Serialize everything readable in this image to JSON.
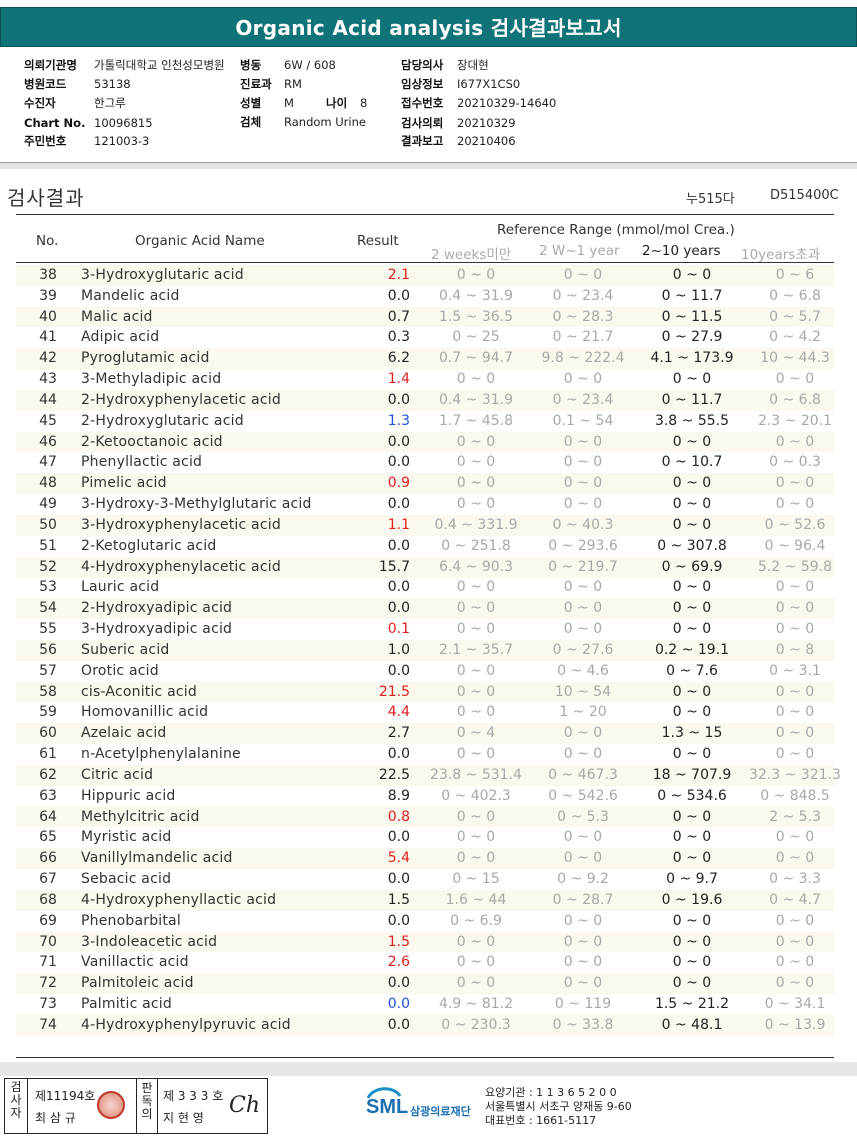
{
  "header": {
    "title": "Organic Acid analysis 검사결과보고서"
  },
  "info": {
    "institution_label": "의뢰기관명",
    "institution": "가톨릭대학교 인천성모병원",
    "hospital_code_label": "병원코드",
    "hospital_code": "53138",
    "patient_label": "수진자",
    "patient": "한그루",
    "chart_label": "Chart No.",
    "chart": "10096815",
    "id_label": "주민번호",
    "id": "121003-3",
    "ward_label": "병동",
    "ward": "6W / 608",
    "dept_label": "진료과",
    "dept": "RM",
    "sex_label": "성별",
    "sex": "M",
    "age_label": "나이",
    "age": "8",
    "specimen_label": "검체",
    "specimen": "Random Urine",
    "doctor_label": "담당의사",
    "doctor": "장대현",
    "clinical_label": "임상정보",
    "clinical": "I677X1CS0",
    "receipt_label": "접수번호",
    "receipt": "20210329-14640",
    "request_label": "검사의뢰",
    "request": "20210329",
    "report_label": "결과보고",
    "report": "20210406"
  },
  "section": {
    "title": "검사결과",
    "code1": "누515다",
    "code2": "D515400C"
  },
  "table": {
    "col_no": "No.",
    "col_name": "Organic Acid Name",
    "col_result": "Result",
    "ref_title": "Reference Range (mmol/mol Crea.)",
    "ref_cols": [
      "2 weeks미만",
      "2 W~1 year",
      "2~10 years",
      "10years초과"
    ]
  },
  "colors": {
    "header_bg": "#0f7377",
    "high": "#e02020",
    "low": "#2050d8",
    "stripe": "#fbf8ee"
  },
  "rows": [
    {
      "no": "38",
      "name": "3-Hydroxyglutaric acid",
      "result": "2.1",
      "flag": "high",
      "r1": "0 ~ 0",
      "r2": "0 ~ 0",
      "r3": "0 ~ 0",
      "r4": "0 ~ 6"
    },
    {
      "no": "39",
      "name": "Mandelic acid",
      "result": "0.0",
      "flag": "",
      "r1": "0.4 ~ 31.9",
      "r2": "0 ~ 23.4",
      "r3": "0 ~ 11.7",
      "r4": "0 ~ 6.8"
    },
    {
      "no": "40",
      "name": "Malic acid",
      "result": "0.7",
      "flag": "",
      "r1": "1.5 ~ 36.5",
      "r2": "0 ~ 28.3",
      "r3": "0 ~ 11.5",
      "r4": "0 ~ 5.7"
    },
    {
      "no": "41",
      "name": "Adipic acid",
      "result": "0.3",
      "flag": "",
      "r1": "0 ~ 25",
      "r2": "0 ~ 21.7",
      "r3": "0 ~ 27.9",
      "r4": "0 ~ 4.2"
    },
    {
      "no": "42",
      "name": "Pyroglutamic acid",
      "result": "6.2",
      "flag": "",
      "r1": "0.7 ~ 94.7",
      "r2": "9.8 ~ 222.4",
      "r3": "4.1 ~ 173.9",
      "r4": "10 ~ 44.3"
    },
    {
      "no": "43",
      "name": "3-Methyladipic acid",
      "result": "1.4",
      "flag": "high",
      "r1": "0 ~ 0",
      "r2": "0 ~ 0",
      "r3": "0 ~ 0",
      "r4": "0 ~ 0"
    },
    {
      "no": "44",
      "name": "2-Hydroxyphenylacetic acid",
      "result": "0.0",
      "flag": "",
      "r1": "0.4 ~ 31.9",
      "r2": "0 ~ 23.4",
      "r3": "0 ~ 11.7",
      "r4": "0 ~ 6.8"
    },
    {
      "no": "45",
      "name": "2-Hydroxyglutaric acid",
      "result": "1.3",
      "flag": "low",
      "r1": "1.7 ~ 45.8",
      "r2": "0.1 ~ 54",
      "r3": "3.8 ~ 55.5",
      "r4": "2.3 ~ 20.1"
    },
    {
      "no": "46",
      "name": "2-Ketooctanoic acid",
      "result": "0.0",
      "flag": "",
      "r1": "0 ~ 0",
      "r2": "0 ~ 0",
      "r3": "0 ~ 0",
      "r4": "0 ~ 0"
    },
    {
      "no": "47",
      "name": "Phenyllactic acid",
      "result": "0.0",
      "flag": "",
      "r1": "0 ~ 0",
      "r2": "0 ~ 0",
      "r3": "0 ~ 10.7",
      "r4": "0 ~ 0.3"
    },
    {
      "no": "48",
      "name": "Pimelic acid",
      "result": "0.9",
      "flag": "high",
      "r1": "0 ~ 0",
      "r2": "0 ~ 0",
      "r3": "0 ~ 0",
      "r4": "0 ~ 0"
    },
    {
      "no": "49",
      "name": "3-Hydroxy-3-Methylglutaric acid",
      "result": "0.0",
      "flag": "",
      "r1": "0 ~ 0",
      "r2": "0 ~ 0",
      "r3": "0 ~ 0",
      "r4": "0 ~ 0"
    },
    {
      "no": "50",
      "name": "3-Hydroxyphenylacetic acid",
      "result": "1.1",
      "flag": "high",
      "r1": "0.4 ~ 331.9",
      "r2": "0 ~ 40.3",
      "r3": "0 ~ 0",
      "r4": "0 ~ 52.6"
    },
    {
      "no": "51",
      "name": "2-Ketoglutaric acid",
      "result": "0.0",
      "flag": "",
      "r1": "0 ~ 251.8",
      "r2": "0 ~ 293.6",
      "r3": "0 ~ 307.8",
      "r4": "0 ~ 96.4"
    },
    {
      "no": "52",
      "name": "4-Hydroxyphenylacetic acid",
      "result": "15.7",
      "flag": "",
      "r1": "6.4 ~ 90.3",
      "r2": "0 ~ 219.7",
      "r3": "0 ~ 69.9",
      "r4": "5.2 ~ 59.8"
    },
    {
      "no": "53",
      "name": "Lauric acid",
      "result": "0.0",
      "flag": "",
      "r1": "0 ~ 0",
      "r2": "0 ~ 0",
      "r3": "0 ~ 0",
      "r4": "0 ~ 0"
    },
    {
      "no": "54",
      "name": "2-Hydroxyadipic acid",
      "result": "0.0",
      "flag": "",
      "r1": "0 ~ 0",
      "r2": "0 ~ 0",
      "r3": "0 ~ 0",
      "r4": "0 ~ 0"
    },
    {
      "no": "55",
      "name": "3-Hydroxyadipic acid",
      "result": "0.1",
      "flag": "high",
      "r1": "0 ~ 0",
      "r2": "0 ~ 0",
      "r3": "0 ~ 0",
      "r4": "0 ~ 0"
    },
    {
      "no": "56",
      "name": "Suberic acid",
      "result": "1.0",
      "flag": "",
      "r1": "2.1 ~ 35.7",
      "r2": "0 ~ 27.6",
      "r3": "0.2 ~ 19.1",
      "r4": "0 ~ 8"
    },
    {
      "no": "57",
      "name": "Orotic acid",
      "result": "0.0",
      "flag": "",
      "r1": "0 ~ 0",
      "r2": "0 ~ 4.6",
      "r3": "0 ~ 7.6",
      "r4": "0 ~ 3.1"
    },
    {
      "no": "58",
      "name": "cis-Aconitic acid",
      "result": "21.5",
      "flag": "high",
      "r1": "0 ~ 0",
      "r2": "10 ~ 54",
      "r3": "0 ~ 0",
      "r4": "0 ~ 0"
    },
    {
      "no": "59",
      "name": "Homovanillic acid",
      "result": "4.4",
      "flag": "high",
      "r1": "0 ~ 0",
      "r2": "1 ~ 20",
      "r3": "0 ~ 0",
      "r4": "0 ~ 0"
    },
    {
      "no": "60",
      "name": "Azelaic acid",
      "result": "2.7",
      "flag": "",
      "r1": "0 ~ 4",
      "r2": "0 ~ 0",
      "r3": "1.3 ~ 15",
      "r4": "0 ~ 0"
    },
    {
      "no": "61",
      "name": "n-Acetylphenylalanine",
      "result": "0.0",
      "flag": "",
      "r1": "0 ~ 0",
      "r2": "0 ~ 0",
      "r3": "0 ~ 0",
      "r4": "0 ~ 0"
    },
    {
      "no": "62",
      "name": "Citric acid",
      "result": "22.5",
      "flag": "",
      "r1": "23.8 ~ 531.4",
      "r2": "0 ~ 467.3",
      "r3": "18 ~ 707.9",
      "r4": "32.3 ~ 321.3"
    },
    {
      "no": "63",
      "name": "Hippuric acid",
      "result": "8.9",
      "flag": "",
      "r1": "0 ~ 402.3",
      "r2": "0 ~ 542.6",
      "r3": "0 ~ 534.6",
      "r4": "0 ~ 848.5"
    },
    {
      "no": "64",
      "name": "Methylcitric acid",
      "result": "0.8",
      "flag": "high",
      "r1": "0 ~ 0",
      "r2": "0 ~ 5.3",
      "r3": "0 ~ 0",
      "r4": "2 ~ 5.3"
    },
    {
      "no": "65",
      "name": "Myristic acid",
      "result": "0.0",
      "flag": "",
      "r1": "0 ~ 0",
      "r2": "0 ~ 0",
      "r3": "0 ~ 0",
      "r4": "0 ~ 0"
    },
    {
      "no": "66",
      "name": "Vanillylmandelic acid",
      "result": "5.4",
      "flag": "high",
      "r1": "0 ~ 0",
      "r2": "0 ~ 0",
      "r3": "0 ~ 0",
      "r4": "0 ~ 0"
    },
    {
      "no": "67",
      "name": "Sebacic acid",
      "result": "0.0",
      "flag": "",
      "r1": "0 ~ 15",
      "r2": "0 ~ 9.2",
      "r3": "0 ~ 9.7",
      "r4": "0 ~ 3.3"
    },
    {
      "no": "68",
      "name": "4-Hydroxyphenyllactic acid",
      "result": "1.5",
      "flag": "",
      "r1": "1.6 ~ 44",
      "r2": "0 ~ 28.7",
      "r3": "0 ~ 19.6",
      "r4": "0 ~ 4.7"
    },
    {
      "no": "69",
      "name": "Phenobarbital",
      "result": "0.0",
      "flag": "",
      "r1": "0 ~ 6.9",
      "r2": "0 ~ 0",
      "r3": "0 ~ 0",
      "r4": "0 ~ 0"
    },
    {
      "no": "70",
      "name": "3-Indoleacetic acid",
      "result": "1.5",
      "flag": "high",
      "r1": "0 ~ 0",
      "r2": "0 ~ 0",
      "r3": "0 ~ 0",
      "r4": "0 ~ 0"
    },
    {
      "no": "71",
      "name": "Vanillactic acid",
      "result": "2.6",
      "flag": "high",
      "r1": "0 ~ 0",
      "r2": "0 ~ 0",
      "r3": "0 ~ 0",
      "r4": "0 ~ 0"
    },
    {
      "no": "72",
      "name": "Palmitoleic acid",
      "result": "0.0",
      "flag": "",
      "r1": "0 ~ 0",
      "r2": "0 ~ 0",
      "r3": "0 ~ 0",
      "r4": "0 ~ 0"
    },
    {
      "no": "73",
      "name": "Palmitic acid",
      "result": "0.0",
      "flag": "low",
      "r1": "4.9 ~ 81.2",
      "r2": "0 ~ 119",
      "r3": "1.5 ~ 21.2",
      "r4": "0 ~ 34.1"
    },
    {
      "no": "74",
      "name": "4-Hydroxyphenylpyruvic acid",
      "result": "0.0",
      "flag": "",
      "r1": "0 ~ 230.3",
      "r2": "0 ~ 33.8",
      "r3": "0 ~ 48.1",
      "r4": "0 ~ 13.9"
    }
  ],
  "footer": {
    "inspector_label": "검사자",
    "inspector_no": "제11194호",
    "inspector_name": "최 삼 규",
    "reviewer_label": "판독의",
    "reviewer_no": "제 3 3 3 호",
    "reviewer_name": "지 현 영",
    "signature": "Ch",
    "logo_text": "SML",
    "logo_sub": "삼광의료재단",
    "care_no": "요양기관 : 1 1 3 6 5 2 0 0",
    "address": "서울특별시 서초구 양재동 9-60",
    "phone": "대표번호 : 1661-5117"
  }
}
